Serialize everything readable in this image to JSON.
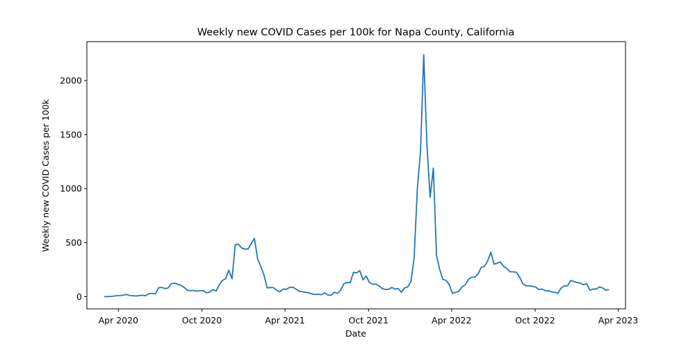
{
  "chart_data": {
    "type": "line",
    "title": "Weekly new COVID Cases per 100k for Napa County, California",
    "xlabel": "Date",
    "ylabel": "Weekly new COVID Cases per 100k",
    "x_range": [
      "2020-01-23",
      "2023-04-17"
    ],
    "ylim": [
      -113,
      2360
    ],
    "x_ticks": [
      {
        "date": "2020-04-01",
        "label": "Apr 2020"
      },
      {
        "date": "2020-10-01",
        "label": "Oct 2020"
      },
      {
        "date": "2021-04-01",
        "label": "Apr 2021"
      },
      {
        "date": "2021-10-01",
        "label": "Oct 2021"
      },
      {
        "date": "2022-04-01",
        "label": "Apr 2022"
      },
      {
        "date": "2022-10-01",
        "label": "Oct 2022"
      },
      {
        "date": "2023-04-01",
        "label": "Apr 2023"
      }
    ],
    "y_ticks": [
      {
        "value": 0,
        "label": "0"
      },
      {
        "value": 500,
        "label": "500"
      },
      {
        "value": 1000,
        "label": "1000"
      },
      {
        "value": 1500,
        "label": "1500"
      },
      {
        "value": 2000,
        "label": "2000"
      }
    ],
    "grid": false,
    "legend": "none",
    "line_color": "#1f77b4",
    "series": [
      {
        "x": [
          "2020-03-01",
          "2020-03-08",
          "2020-03-15",
          "2020-03-22",
          "2020-03-29",
          "2020-04-05",
          "2020-04-12",
          "2020-04-19",
          "2020-04-26",
          "2020-05-03",
          "2020-05-10",
          "2020-05-17",
          "2020-05-24",
          "2020-05-31",
          "2020-06-07",
          "2020-06-14",
          "2020-06-21",
          "2020-06-28",
          "2020-07-05",
          "2020-07-12",
          "2020-07-19",
          "2020-07-26",
          "2020-08-02",
          "2020-08-09",
          "2020-08-16",
          "2020-08-23",
          "2020-08-30",
          "2020-09-06",
          "2020-09-13",
          "2020-09-20",
          "2020-09-27",
          "2020-10-04",
          "2020-10-11",
          "2020-10-18",
          "2020-10-25",
          "2020-11-01",
          "2020-11-08",
          "2020-11-15",
          "2020-11-22",
          "2020-11-29",
          "2020-12-06",
          "2020-12-13",
          "2020-12-20",
          "2020-12-27",
          "2021-01-03",
          "2021-01-10",
          "2021-01-17",
          "2021-01-24",
          "2021-01-31",
          "2021-02-07",
          "2021-02-14",
          "2021-02-21",
          "2021-02-28",
          "2021-03-07",
          "2021-03-14",
          "2021-03-21",
          "2021-03-28",
          "2021-04-04",
          "2021-04-11",
          "2021-04-18",
          "2021-04-25",
          "2021-05-02",
          "2021-05-09",
          "2021-05-16",
          "2021-05-23",
          "2021-05-30",
          "2021-06-06",
          "2021-06-13",
          "2021-06-20",
          "2021-06-27",
          "2021-07-04",
          "2021-07-11",
          "2021-07-18",
          "2021-07-25",
          "2021-08-01",
          "2021-08-08",
          "2021-08-15",
          "2021-08-22",
          "2021-08-29",
          "2021-09-05",
          "2021-09-12",
          "2021-09-19",
          "2021-09-26",
          "2021-10-03",
          "2021-10-10",
          "2021-10-17",
          "2021-10-24",
          "2021-10-31",
          "2021-11-07",
          "2021-11-14",
          "2021-11-21",
          "2021-11-28",
          "2021-12-05",
          "2021-12-12",
          "2021-12-19",
          "2021-12-26",
          "2022-01-02",
          "2022-01-09",
          "2022-01-16",
          "2022-01-23",
          "2022-01-30",
          "2022-02-06",
          "2022-02-13",
          "2022-02-20",
          "2022-02-27",
          "2022-03-06",
          "2022-03-13",
          "2022-03-20",
          "2022-03-27",
          "2022-04-03",
          "2022-04-10",
          "2022-04-17",
          "2022-04-24",
          "2022-05-01",
          "2022-05-08",
          "2022-05-15",
          "2022-05-22",
          "2022-05-29",
          "2022-06-05",
          "2022-06-12",
          "2022-06-19",
          "2022-06-26",
          "2022-07-03",
          "2022-07-10",
          "2022-07-17",
          "2022-07-24",
          "2022-07-31",
          "2022-08-07",
          "2022-08-14",
          "2022-08-21",
          "2022-08-28",
          "2022-09-04",
          "2022-09-11",
          "2022-09-18",
          "2022-09-25",
          "2022-10-02",
          "2022-10-09",
          "2022-10-16",
          "2022-10-23",
          "2022-10-30",
          "2022-11-06",
          "2022-11-13",
          "2022-11-20",
          "2022-11-27",
          "2022-12-04",
          "2022-12-11",
          "2022-12-18",
          "2022-12-25",
          "2023-01-01",
          "2023-01-08",
          "2023-01-15",
          "2023-01-22",
          "2023-01-29",
          "2023-02-05",
          "2023-02-12",
          "2023-02-19",
          "2023-02-26",
          "2023-03-05",
          "2023-03-12"
        ],
        "y": [
          0,
          0,
          2,
          5,
          8,
          10,
          14,
          20,
          10,
          8,
          6,
          10,
          12,
          8,
          28,
          30,
          25,
          82,
          85,
          75,
          80,
          120,
          125,
          115,
          105,
          85,
          60,
          55,
          57,
          50,
          55,
          55,
          35,
          42,
          65,
          52,
          110,
          150,
          165,
          245,
          165,
          480,
          485,
          450,
          440,
          440,
          490,
          540,
          350,
          280,
          200,
          80,
          85,
          83,
          58,
          45,
          70,
          68,
          85,
          88,
          70,
          50,
          45,
          40,
          35,
          25,
          20,
          22,
          18,
          35,
          15,
          12,
          40,
          30,
          60,
          120,
          130,
          130,
          225,
          220,
          240,
          155,
          190,
          130,
          115,
          115,
          100,
          75,
          65,
          68,
          85,
          70,
          75,
          40,
          80,
          90,
          140,
          360,
          1000,
          1350,
          2240,
          1400,
          920,
          1190,
          380,
          250,
          160,
          150,
          110,
          30,
          40,
          50,
          90,
          110,
          160,
          180,
          180,
          210,
          270,
          280,
          330,
          410,
          300,
          310,
          320,
          280,
          260,
          230,
          230,
          225,
          180,
          120,
          100,
          100,
          95,
          90,
          65,
          70,
          55,
          55,
          45,
          40,
          30,
          80,
          100,
          100,
          150,
          140,
          130,
          125,
          110,
          120,
          60,
          70,
          70,
          90,
          80,
          60,
          65
        ]
      }
    ]
  }
}
